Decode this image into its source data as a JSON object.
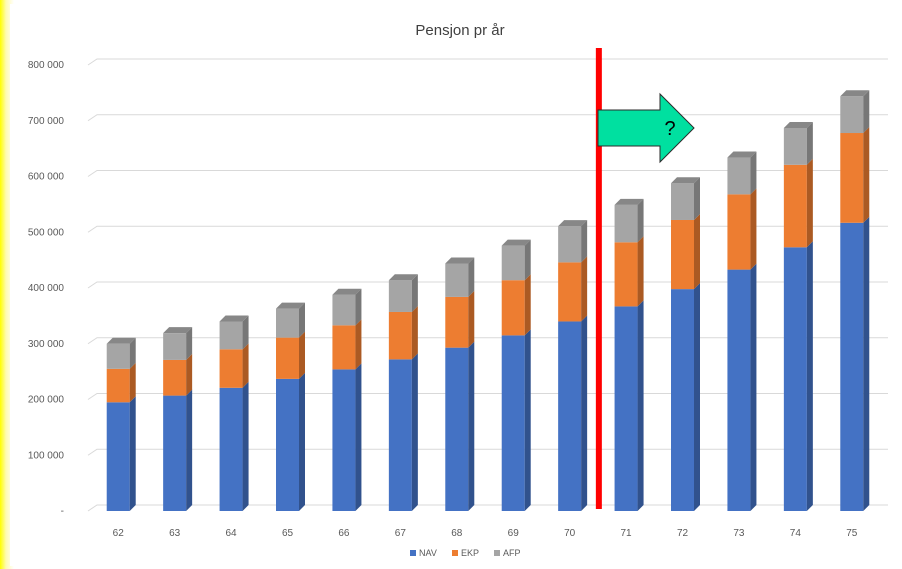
{
  "chart_data": {
    "type": "bar",
    "stacked": true,
    "title": "Pensjon pr år",
    "categories": [
      "62",
      "63",
      "64",
      "65",
      "66",
      "67",
      "68",
      "69",
      "70",
      "71",
      "72",
      "73",
      "74",
      "75"
    ],
    "series": [
      {
        "name": "NAV",
        "color": "#4472C4",
        "values": [
          195000,
          207000,
          221000,
          237000,
          254000,
          272000,
          293000,
          315000,
          340000,
          367000,
          398000,
          433000,
          473000,
          517000
        ]
      },
      {
        "name": "EKP",
        "color": "#ED7D31",
        "values": [
          60000,
          64000,
          69000,
          74000,
          79000,
          85000,
          91000,
          99000,
          106000,
          115000,
          124000,
          135000,
          148000,
          161000
        ]
      },
      {
        "name": "AFP",
        "color": "#A5A5A5",
        "values": [
          45000,
          48000,
          50000,
          52000,
          55000,
          57000,
          60000,
          62000,
          65000,
          67000,
          66000,
          66000,
          66000,
          66000
        ]
      }
    ],
    "ylim": [
      0,
      800000
    ],
    "yticks": [
      "-",
      "100 000",
      "200 000",
      "300 000",
      "400 000",
      "500 000",
      "600 000",
      "700 000",
      "800 000"
    ],
    "grid": true,
    "legend_position": "bottom",
    "annotations": {
      "divider_after_category": "70",
      "divider_color": "#FF0000",
      "arrow_color": "#00E0A0",
      "arrow_label": "?"
    }
  }
}
